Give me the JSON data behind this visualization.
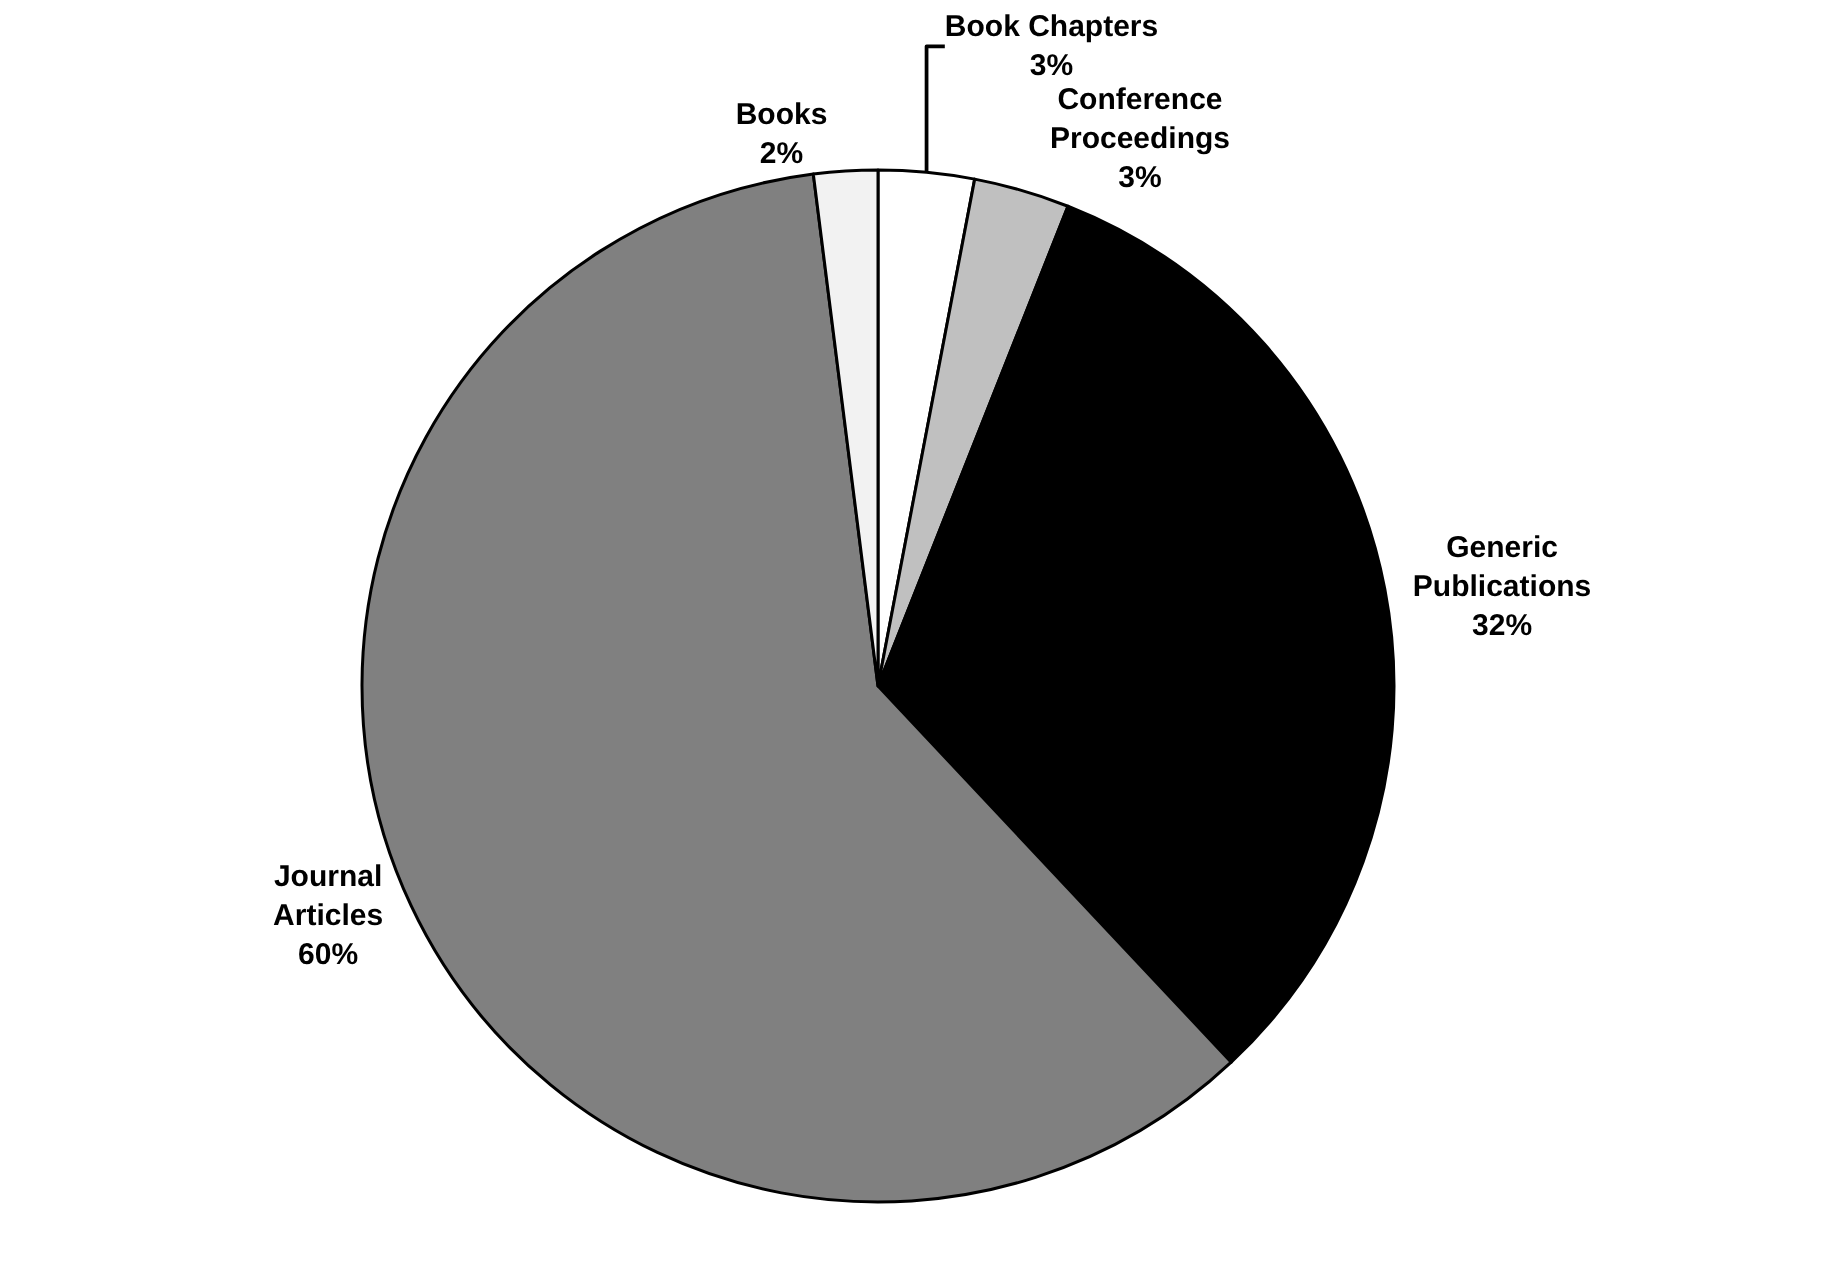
{
  "chart_data": {
    "type": "pie",
    "categories": [
      "Book Chapters",
      "Conference Proceedings",
      "Generic Publications",
      "Journal Articles",
      "Books"
    ],
    "values": [
      3,
      3,
      32,
      60,
      2
    ],
    "value_labels": [
      "3%",
      "3%",
      "32%",
      "60%",
      "2%"
    ],
    "colors": [
      "#ffffff",
      "#c0c0c0",
      "#000000",
      "#808080",
      "#f2f2f2"
    ],
    "legend": false
  }
}
